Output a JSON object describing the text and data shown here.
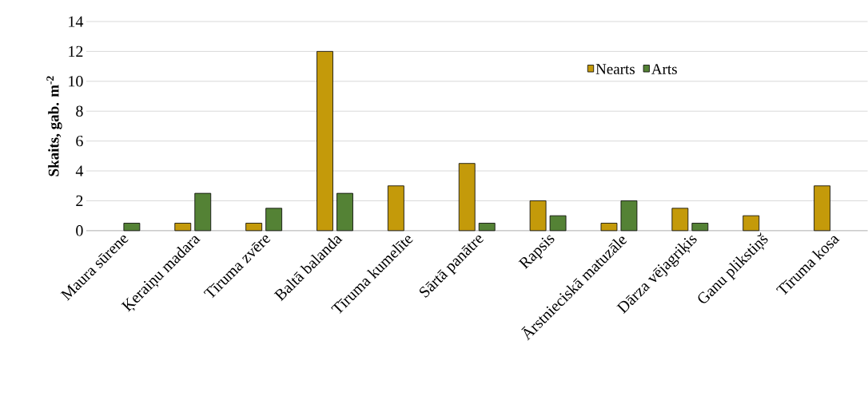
{
  "chart_data": {
    "type": "bar",
    "ylabel": "Skaits, gab. m$^{-2}$",
    "categories": [
      "Maura sūrene",
      "Ķeraiņu madara",
      "Tīruma zvēre",
      "Baltā balanda",
      "Tīruma kumelīte",
      "Sārtā panātre",
      "Rapsis",
      "Ārstnieciskā matuzāle",
      "Dārza vējagriķis",
      "Ganu plikstiņš",
      "Tīruma kosa"
    ],
    "series": [
      {
        "name": "Nearts",
        "color": "#c49a0a",
        "values": [
          null,
          0.5,
          0.5,
          12,
          3,
          4.5,
          2,
          0.5,
          1.5,
          1,
          3
        ]
      },
      {
        "name": "Arts",
        "color": "#548235",
        "values": [
          0.5,
          2.5,
          1.5,
          2.5,
          null,
          0.5,
          1,
          2,
          0.5,
          null,
          null
        ]
      }
    ],
    "ylim": [
      0,
      14
    ],
    "yticks": [
      0,
      2,
      4,
      6,
      8,
      10,
      12,
      14
    ],
    "grid": "y",
    "legend": "top"
  }
}
